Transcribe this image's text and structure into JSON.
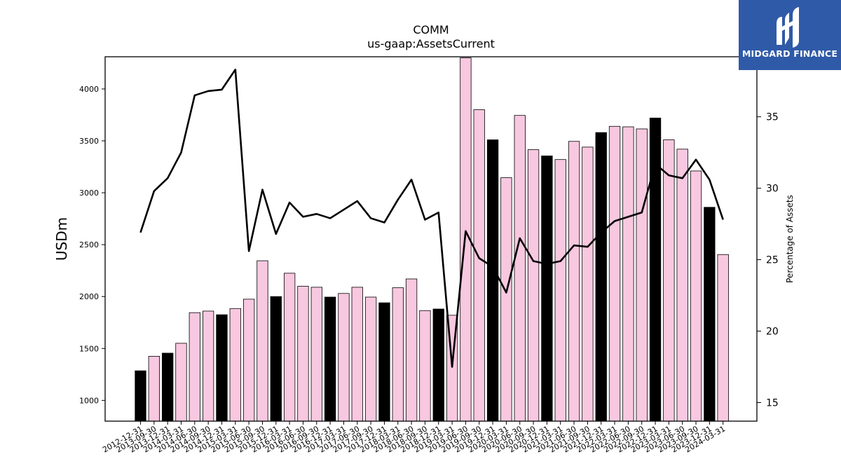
{
  "chart_data": {
    "type": "bar",
    "title": "COMM",
    "subtitle": "us-gaap:AssetsCurrent",
    "ylabel": "USDm",
    "y2label": "Percentage of Assets",
    "ylim": [
      800,
      4310
    ],
    "y2lim": [
      13.7,
      39.2
    ],
    "yticks": [
      1000,
      1500,
      2000,
      2500,
      3000,
      3500,
      4000
    ],
    "y2ticks": [
      15,
      20,
      25,
      30,
      35
    ],
    "categories": [
      "2012-12-31",
      "2013-09-30",
      "2013-12-31",
      "2014-03-31",
      "2014-06-30",
      "2014-09-30",
      "2014-12-31",
      "2015-03-31",
      "2015-06-30",
      "2015-09-30",
      "2015-12-31",
      "2016-03-31",
      "2016-06-30",
      "2016-09-30",
      "2016-12-31",
      "2017-03-31",
      "2017-06-30",
      "2017-09-30",
      "2017-12-31",
      "2018-03-31",
      "2018-06-30",
      "2018-09-30",
      "2018-12-31",
      "2019-03-31",
      "2019-06-30",
      "2019-09-30",
      "2019-12-31",
      "2020-03-31",
      "2020-06-30",
      "2020-09-30",
      "2020-12-31",
      "2021-03-31",
      "2021-06-30",
      "2021-09-30",
      "2021-12-31",
      "2022-03-31",
      "2022-06-30",
      "2022-09-30",
      "2022-12-31",
      "2023-03-31",
      "2023-06-30",
      "2023-09-30",
      "2023-12-31",
      "2024-03-31"
    ],
    "series": [
      {
        "type": "bar",
        "values": [
          1285,
          1425,
          1455,
          1550,
          1845,
          1860,
          1825,
          1885,
          1975,
          2345,
          2000,
          2225,
          2100,
          2090,
          1995,
          2030,
          2090,
          1995,
          1940,
          2085,
          2170,
          1865,
          1880,
          1820,
          4300,
          3800,
          3510,
          3145,
          3745,
          3415,
          3355,
          3320,
          3495,
          3440,
          3580,
          3640,
          3635,
          3615,
          3720,
          3510,
          3420,
          3210,
          2860,
          2405
        ],
        "highlight": [
          true,
          false,
          true,
          false,
          false,
          false,
          true,
          false,
          false,
          false,
          true,
          false,
          false,
          false,
          true,
          false,
          false,
          false,
          true,
          false,
          false,
          false,
          true,
          false,
          false,
          false,
          true,
          false,
          false,
          false,
          true,
          false,
          false,
          false,
          true,
          false,
          false,
          false,
          true,
          false,
          false,
          false,
          true,
          false
        ],
        "color": "#f8c8e0",
        "highlight_color": "#000000"
      },
      {
        "type": "line",
        "axis": "right",
        "color": "#000000",
        "values": [
          26.9,
          29.8,
          30.7,
          32.5,
          36.5,
          36.8,
          36.9,
          38.3,
          25.6,
          29.9,
          26.8,
          29.0,
          28.0,
          28.2,
          27.9,
          28.5,
          29.1,
          27.9,
          27.6,
          29.2,
          30.6,
          27.8,
          28.3,
          17.5,
          27.0,
          25.1,
          24.5,
          22.7,
          26.5,
          24.9,
          24.7,
          24.9,
          26.0,
          25.9,
          26.9,
          27.7,
          28.0,
          28.3,
          31.7,
          30.9,
          30.7,
          32.0,
          30.6,
          27.8
        ]
      }
    ],
    "grid": false
  },
  "brand": {
    "name": "MIDGARD FINANCE",
    "icon": "midgard-logo-icon",
    "color": "#2f5aa8"
  }
}
